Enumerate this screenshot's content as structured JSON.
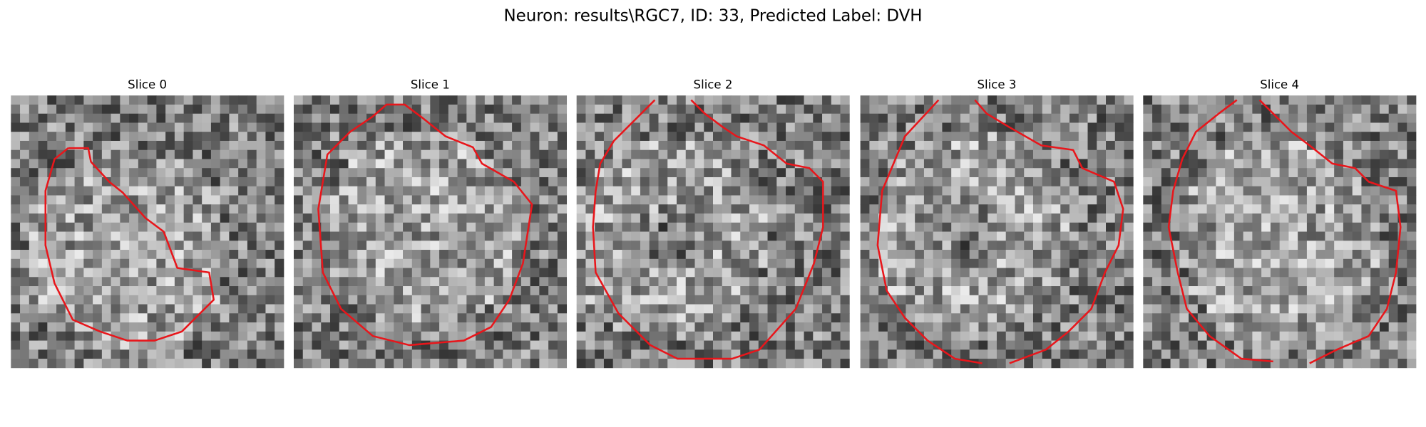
{
  "title": "Neuron: results\\RGC7, ID: 33, Predicted Label: DVH",
  "panels": [
    {
      "title": "Slice 0"
    },
    {
      "title": "Slice 1"
    },
    {
      "title": "Slice 2"
    },
    {
      "title": "Slice 3"
    },
    {
      "title": "Slice 4"
    }
  ]
}
